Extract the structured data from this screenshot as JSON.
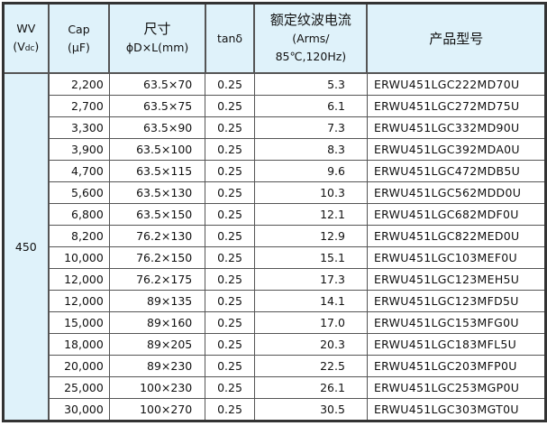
{
  "headers": {
    "wv": "WV",
    "wv_unit_open": "(V",
    "wv_unit_sub": "dc",
    "wv_unit_close": ")",
    "cap": "Cap",
    "cap_unit": "(μF)",
    "size": "尺寸",
    "size_unit": "ϕD×L(mm)",
    "tan": "tanδ",
    "ripple": "额定纹波电流",
    "ripple_unit1": "(Arms/",
    "ripple_unit2": "85℃,120Hz)",
    "part": "产品型号"
  },
  "wv_value": "450",
  "rows": [
    {
      "cap": "2,200",
      "size": "63.5×70",
      "tan": "0.25",
      "ripple": "5.3",
      "part": "ERWU451LGC222MD70U"
    },
    {
      "cap": "2,700",
      "size": "63.5×75",
      "tan": "0.25",
      "ripple": "6.1",
      "part": "ERWU451LGC272MD75U"
    },
    {
      "cap": "3,300",
      "size": "63.5×90",
      "tan": "0.25",
      "ripple": "7.3",
      "part": "ERWU451LGC332MD90U"
    },
    {
      "cap": "3,900",
      "size": "63.5×100",
      "tan": "0.25",
      "ripple": "8.3",
      "part": "ERWU451LGC392MDA0U"
    },
    {
      "cap": "4,700",
      "size": "63.5×115",
      "tan": "0.25",
      "ripple": "9.6",
      "part": "ERWU451LGC472MDB5U"
    },
    {
      "cap": "5,600",
      "size": "63.5×130",
      "tan": "0.25",
      "ripple": "10.3",
      "part": "ERWU451LGC562MDD0U"
    },
    {
      "cap": "6,800",
      "size": "63.5×150",
      "tan": "0.25",
      "ripple": "12.1",
      "part": "ERWU451LGC682MDF0U"
    },
    {
      "cap": "8,200",
      "size": "76.2×130",
      "tan": "0.25",
      "ripple": "12.9",
      "part": "ERWU451LGC822MED0U"
    },
    {
      "cap": "10,000",
      "size": "76.2×150",
      "tan": "0.25",
      "ripple": "15.1",
      "part": "ERWU451LGC103MEF0U"
    },
    {
      "cap": "12,000",
      "size": "76.2×175",
      "tan": "0.25",
      "ripple": "17.3",
      "part": "ERWU451LGC123MEH5U"
    },
    {
      "cap": "12,000",
      "size": "89×135",
      "tan": "0.25",
      "ripple": "14.1",
      "part": "ERWU451LGC123MFD5U"
    },
    {
      "cap": "15,000",
      "size": "89×160",
      "tan": "0.25",
      "ripple": "17.0",
      "part": "ERWU451LGC153MFG0U"
    },
    {
      "cap": "18,000",
      "size": "89×205",
      "tan": "0.25",
      "ripple": "20.3",
      "part": "ERWU451LGC183MFL5U"
    },
    {
      "cap": "20,000",
      "size": "89×230",
      "tan": "0.25",
      "ripple": "22.5",
      "part": "ERWU451LGC203MFP0U"
    },
    {
      "cap": "25,000",
      "size": "100×230",
      "tan": "0.25",
      "ripple": "26.1",
      "part": "ERWU451LGC253MGP0U"
    },
    {
      "cap": "30,000",
      "size": "100×270",
      "tan": "0.25",
      "ripple": "30.5",
      "part": "ERWU451LGC303MGT0U"
    }
  ]
}
